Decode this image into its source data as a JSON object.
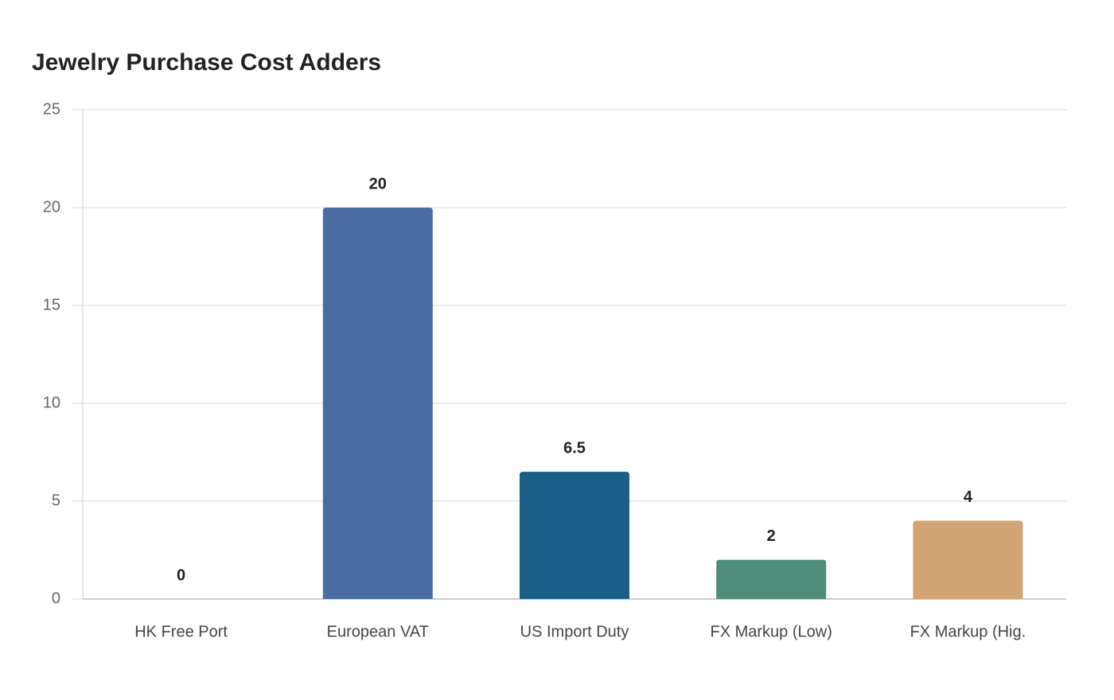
{
  "chart_data": {
    "type": "bar",
    "title": "Jewelry Purchase Cost Adders",
    "categories": [
      "HK Free Port",
      "European VAT",
      "US Import Duty",
      "FX Markup (Low)",
      "FX Markup (Hig."
    ],
    "values": [
      0,
      20,
      6.5,
      2,
      4
    ],
    "colors": [
      "#3f6fa8",
      "#4a6ca0",
      "#1a5f86",
      "#4f8c7a",
      "#d2a373"
    ],
    "ylim": [
      0,
      25
    ],
    "yticks": [
      0,
      5,
      10,
      15,
      20,
      25
    ],
    "grid": true
  }
}
